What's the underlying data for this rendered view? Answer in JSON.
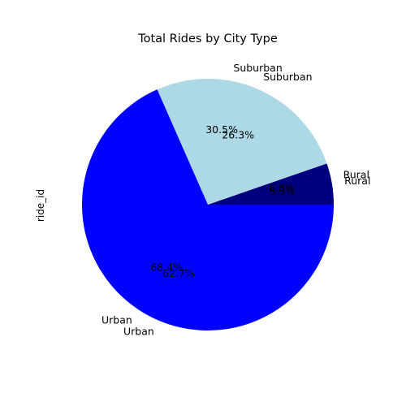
{
  "chart_data": {
    "type": "pie",
    "title": "Total Rides by City Type",
    "ylabel": "ride_id",
    "categories": [
      "Rural",
      "Suburban",
      "Urban"
    ],
    "colors": [
      "#00007f",
      "#add8e6",
      "#0000ff"
    ],
    "layers": [
      {
        "name": "",
        "values": [
          5.3,
          26.3,
          68.4
        ],
        "category_labels": [
          "Rural",
          "Suburban",
          "Urban"
        ],
        "pct_labels": [
          "5.3%",
          "26.3%",
          "68.4%"
        ],
        "drawn": true
      },
      {
        "name": "",
        "values": [
          6.8,
          30.5,
          62.7
        ],
        "category_labels": [
          "Rural",
          "Suburban",
          "Urban"
        ],
        "pct_labels": [
          "6.8%",
          "30.5%",
          "62.7%"
        ],
        "drawn": false
      }
    ]
  }
}
